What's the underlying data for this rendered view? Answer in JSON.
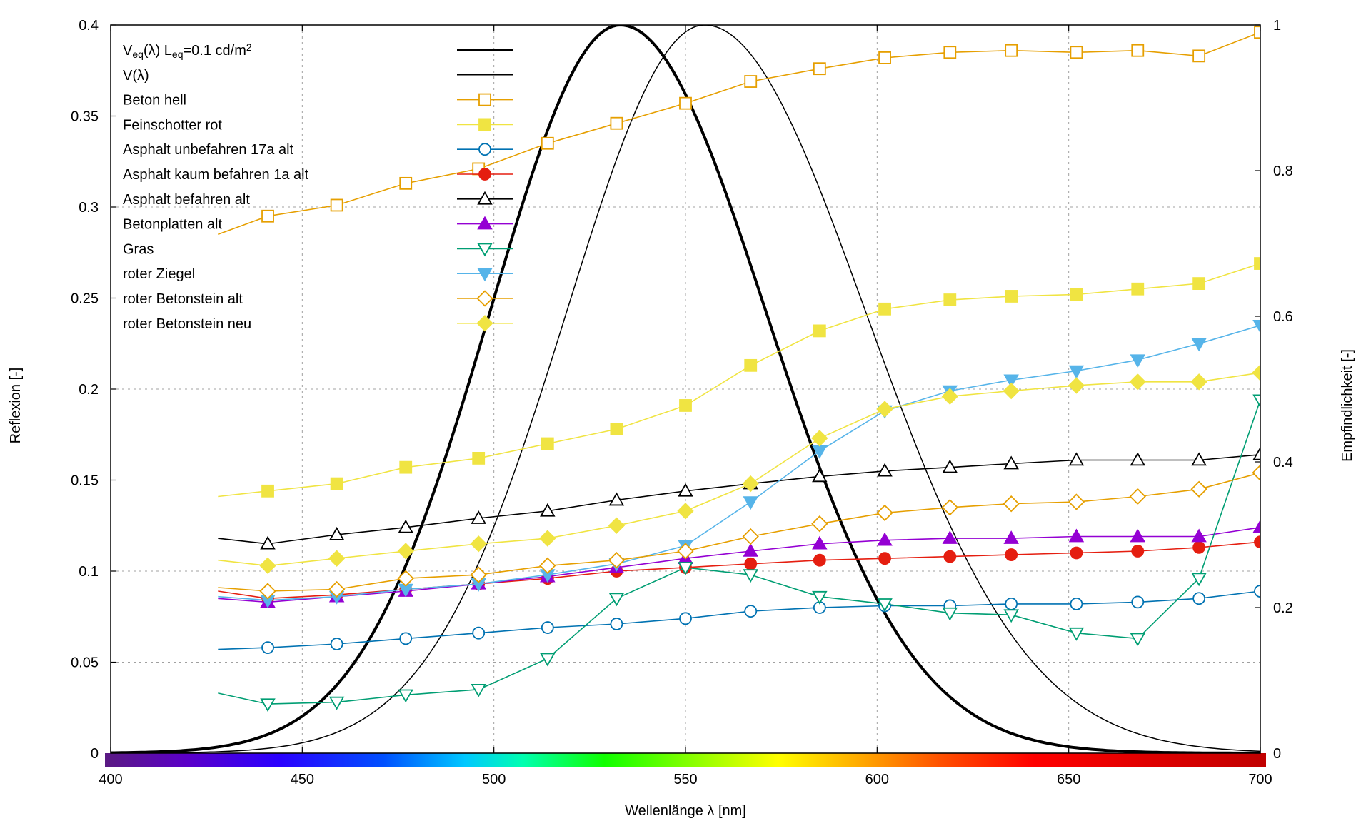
{
  "chart_data": {
    "type": "line",
    "x_label": "Wellenlänge λ [nm]",
    "y_left_label": "Reflexion [-]",
    "y_right_label": "Empfindlichkeit [-]",
    "xlim": [
      400,
      700
    ],
    "y_left_lim": [
      0,
      0.4
    ],
    "y_right_lim": [
      0,
      1
    ],
    "x_ticks": [
      400,
      450,
      500,
      550,
      600,
      650,
      700
    ],
    "y_left_ticks": [
      0,
      0.05,
      0.1,
      0.15,
      0.2,
      0.25,
      0.3,
      0.35,
      0.4
    ],
    "y_right_ticks": [
      0,
      0.2,
      0.4,
      0.6,
      0.8,
      1
    ],
    "grid": true,
    "spectrum_bar": true,
    "legend_position": "top-left",
    "sensitivity_curves": [
      {
        "name_parts": [
          "V",
          "eq",
          "(λ) L",
          "eq",
          "=0.1 cd/m",
          "2"
        ],
        "axis": "right",
        "color": "#000000",
        "width": 4,
        "peak": 533,
        "sigma_left": 34,
        "sigma_right": 38
      },
      {
        "name_parts": [
          "V(λ)"
        ],
        "axis": "right",
        "color": "#000000",
        "width": 1.5,
        "peak": 555,
        "sigma_left": 36,
        "sigma_right": 42
      }
    ],
    "x": [
      428,
      441,
      459,
      477,
      496,
      514,
      532,
      550,
      567,
      585,
      602,
      619,
      635,
      652,
      668,
      684,
      700
    ],
    "series": [
      {
        "name": "Beton hell",
        "color": "#e69f00",
        "marker": "square",
        "fill": "open",
        "values": [
          0.285,
          0.295,
          0.301,
          0.313,
          0.321,
          0.335,
          0.346,
          0.357,
          0.369,
          0.376,
          0.382,
          0.385,
          0.386,
          0.385,
          0.386,
          0.383,
          0.396
        ]
      },
      {
        "name": "Feinschotter rot",
        "color": "#f0e442",
        "marker": "square",
        "fill": "filled",
        "values": [
          0.141,
          0.144,
          0.148,
          0.157,
          0.162,
          0.17,
          0.178,
          0.191,
          0.213,
          0.232,
          0.244,
          0.249,
          0.251,
          0.252,
          0.255,
          0.258,
          0.269
        ]
      },
      {
        "name": "Asphalt unbefahren 17a alt",
        "color": "#0072b2",
        "marker": "circle",
        "fill": "open",
        "values": [
          0.057,
          0.058,
          0.06,
          0.063,
          0.066,
          0.069,
          0.071,
          0.074,
          0.078,
          0.08,
          0.081,
          0.081,
          0.082,
          0.082,
          0.083,
          0.085,
          0.089
        ]
      },
      {
        "name": "Asphalt kaum befahren 1a alt",
        "color": "#e51e10",
        "marker": "circle",
        "fill": "filled",
        "values": [
          0.089,
          0.085,
          0.087,
          0.09,
          0.093,
          0.096,
          0.1,
          0.102,
          0.104,
          0.106,
          0.107,
          0.108,
          0.109,
          0.11,
          0.111,
          0.113,
          0.116
        ]
      },
      {
        "name": "Asphalt befahren alt",
        "color": "#000000",
        "marker": "triangle-up",
        "fill": "open",
        "values": [
          0.118,
          0.115,
          0.12,
          0.124,
          0.129,
          0.133,
          0.139,
          0.144,
          0.148,
          0.152,
          0.155,
          0.157,
          0.159,
          0.161,
          0.161,
          0.161,
          0.164
        ]
      },
      {
        "name": "Betonplatten alt",
        "color": "#9400d3",
        "marker": "triangle-up",
        "fill": "filled",
        "values": [
          0.085,
          0.083,
          0.086,
          0.089,
          0.093,
          0.097,
          0.102,
          0.107,
          0.111,
          0.115,
          0.117,
          0.118,
          0.118,
          0.119,
          0.119,
          0.119,
          0.124
        ]
      },
      {
        "name": "Gras",
        "color": "#009e73",
        "marker": "triangle-down",
        "fill": "open",
        "values": [
          0.033,
          0.027,
          0.028,
          0.032,
          0.035,
          0.052,
          0.085,
          0.102,
          0.098,
          0.086,
          0.082,
          0.077,
          0.076,
          0.066,
          0.063,
          0.096,
          0.194
        ]
      },
      {
        "name": "roter Ziegel",
        "color": "#56b4e9",
        "marker": "triangle-down",
        "fill": "filled",
        "values": [
          0.086,
          0.084,
          0.086,
          0.09,
          0.093,
          0.098,
          0.104,
          0.114,
          0.138,
          0.166,
          0.188,
          0.199,
          0.205,
          0.21,
          0.216,
          0.225,
          0.235
        ]
      },
      {
        "name": "roter Betonstein alt",
        "color": "#e69f00",
        "marker": "diamond",
        "fill": "open",
        "values": [
          0.091,
          0.089,
          0.09,
          0.096,
          0.098,
          0.103,
          0.106,
          0.111,
          0.119,
          0.126,
          0.132,
          0.135,
          0.137,
          0.138,
          0.141,
          0.145,
          0.154
        ]
      },
      {
        "name": "roter Betonstein neu",
        "color": "#f0e442",
        "marker": "diamond",
        "fill": "filled",
        "values": [
          0.106,
          0.103,
          0.107,
          0.111,
          0.115,
          0.118,
          0.125,
          0.133,
          0.148,
          0.173,
          0.189,
          0.196,
          0.199,
          0.202,
          0.204,
          0.204,
          0.209
        ]
      }
    ]
  }
}
